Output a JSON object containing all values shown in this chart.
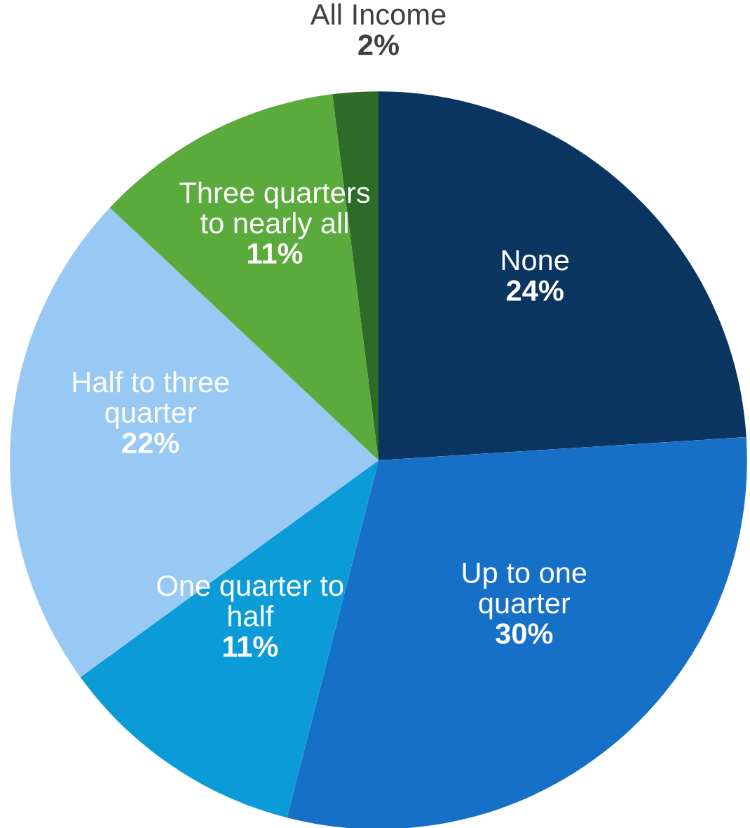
{
  "chart_data": {
    "type": "pie",
    "categories": [
      "None",
      "Up to one\nquarter",
      "One quarter to\nhalf",
      "Half to three\nquarter",
      "Three quarters\nto nearly all",
      "All Income"
    ],
    "values": [
      24,
      30,
      11,
      22,
      11,
      2
    ],
    "value_labels": [
      "24%",
      "30%",
      "11%",
      "22%",
      "11%",
      "2%"
    ],
    "colors": [
      "#0b3561",
      "#1670c8",
      "#0b9bd7",
      "#98c8f4",
      "#5aaa3c",
      "#2f6b28"
    ],
    "legend": false
  }
}
